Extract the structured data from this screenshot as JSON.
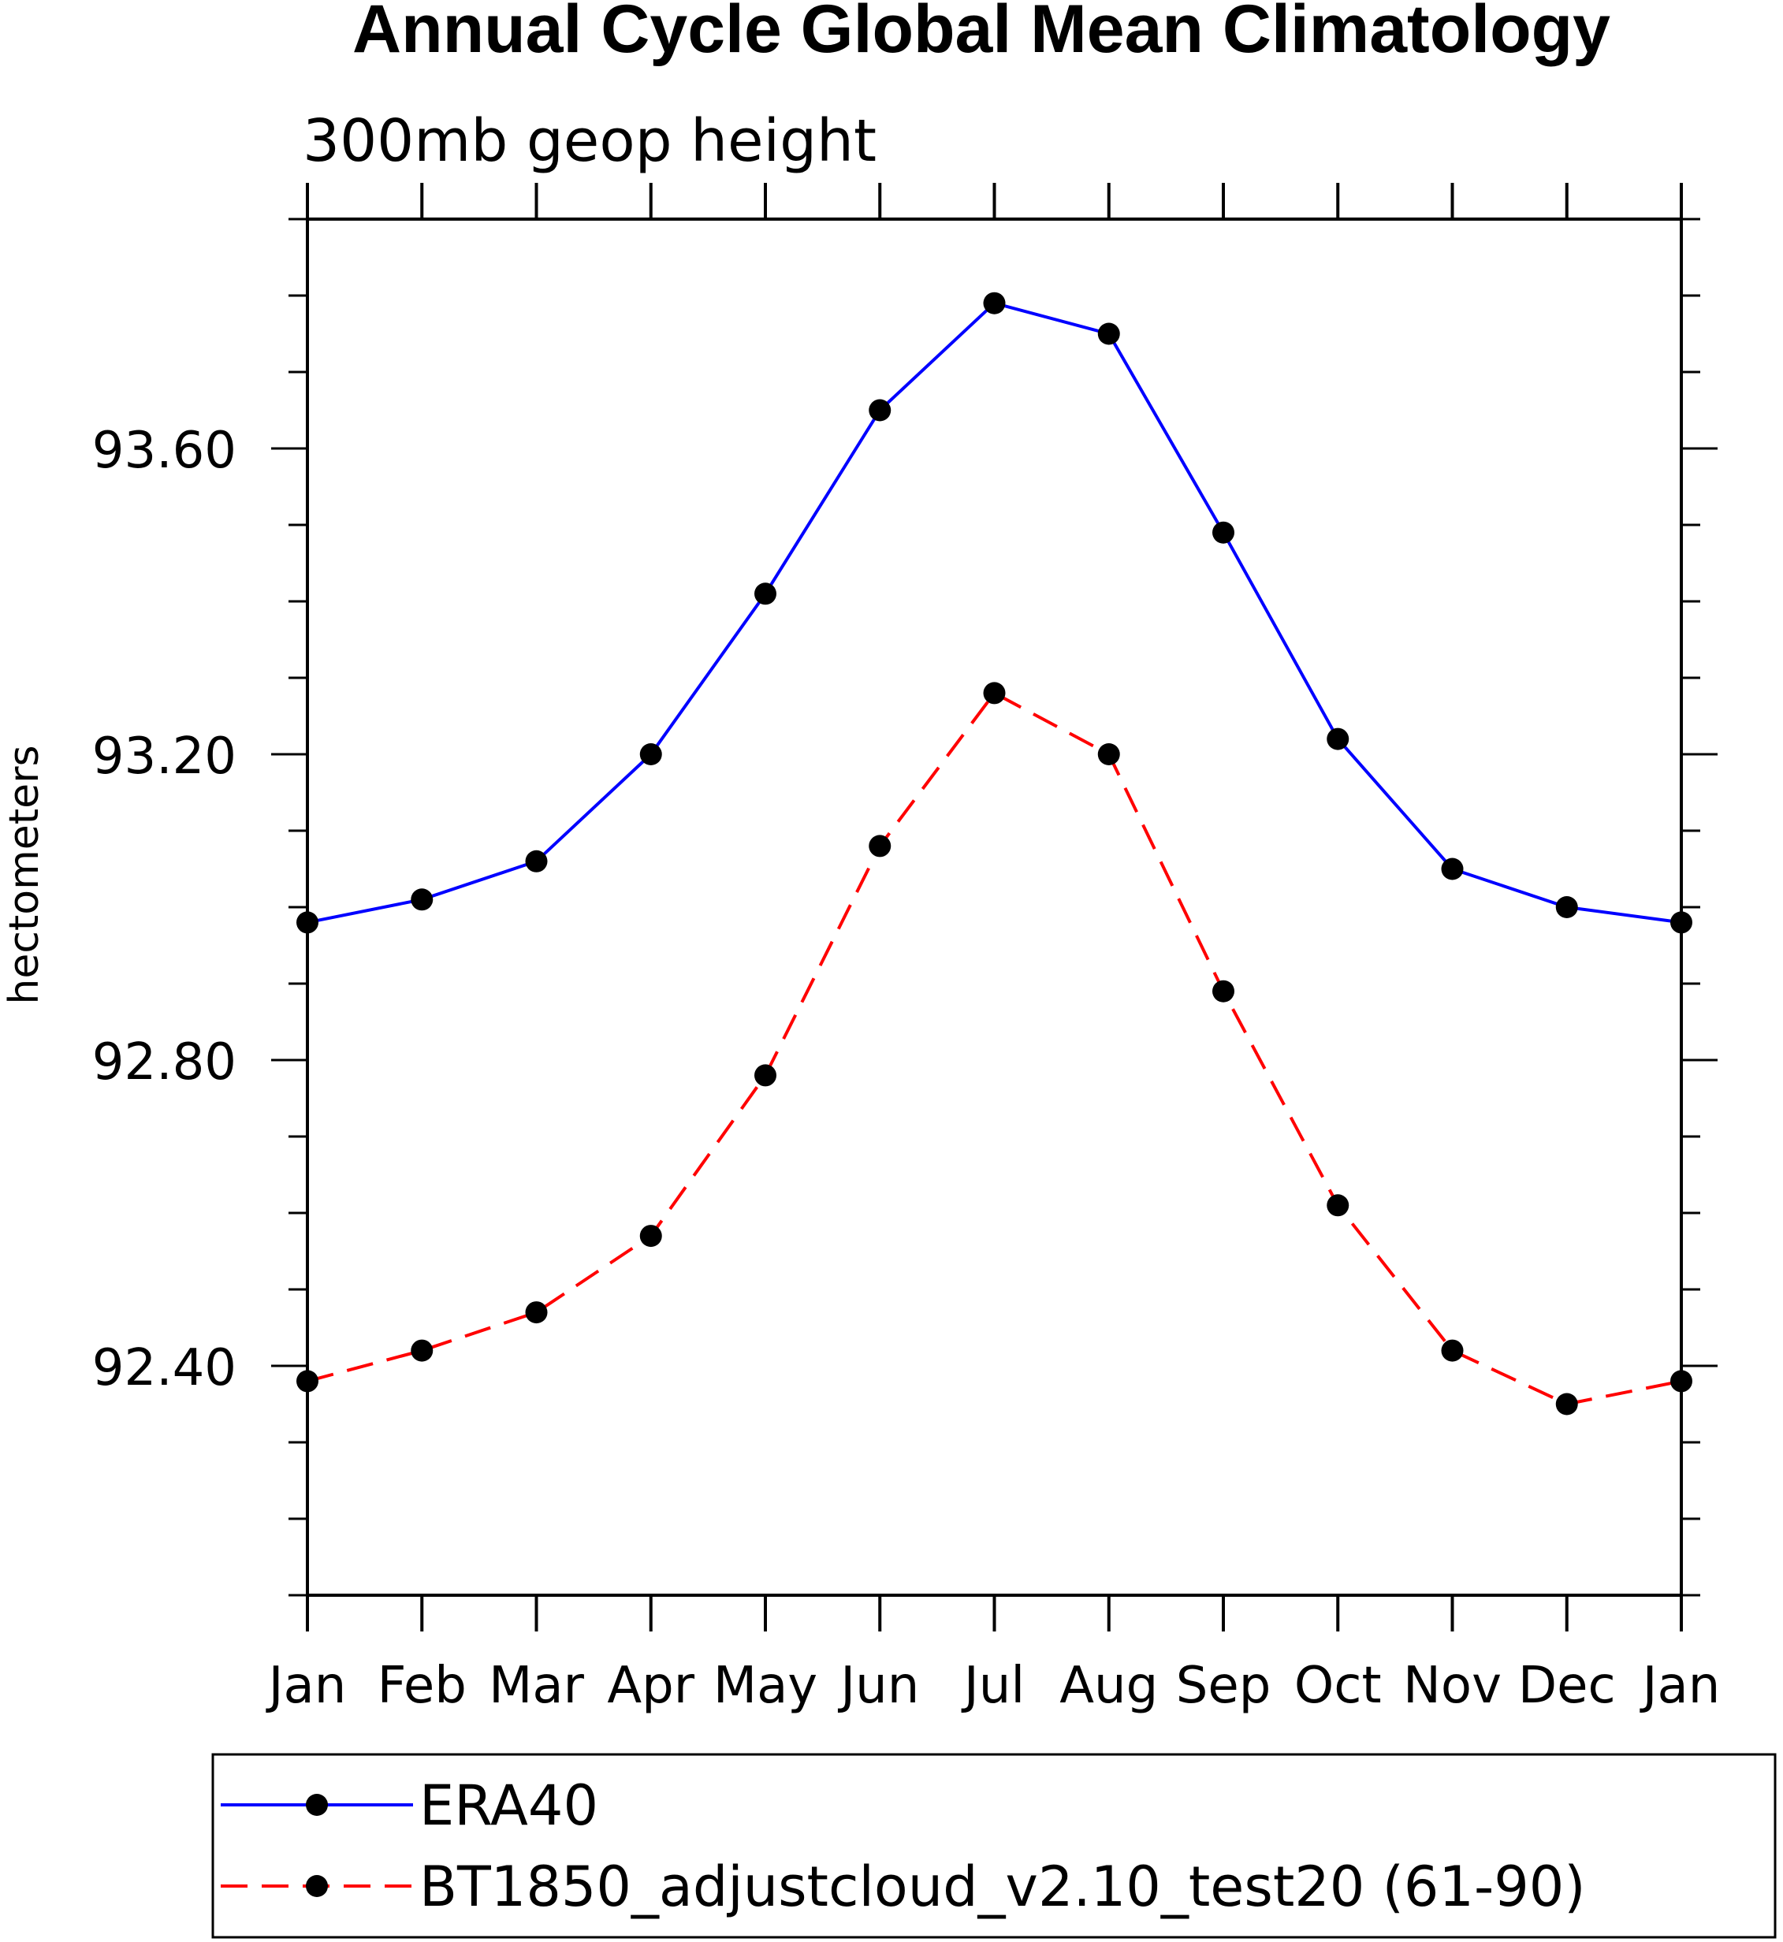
{
  "chart_data": {
    "type": "line",
    "title": "Annual Cycle Global Mean Climatology",
    "subtitle": "300mb geop height",
    "xlabel": "",
    "ylabel": "hectometers",
    "categories": [
      "Jan",
      "Feb",
      "Mar",
      "Apr",
      "May",
      "Jun",
      "Jul",
      "Aug",
      "Sep",
      "Oct",
      "Nov",
      "Dec",
      "Jan"
    ],
    "yticks": [
      "93.60",
      "93.20",
      "92.80",
      "92.40"
    ],
    "ylim": [
      92.1,
      93.9
    ],
    "grid": false,
    "legend_position": "bottom",
    "series": [
      {
        "name": "ERA40",
        "color": "#0000ff",
        "style": "solid",
        "marker": "circle",
        "values": [
          92.98,
          93.01,
          93.06,
          93.2,
          93.41,
          93.65,
          93.79,
          93.75,
          93.49,
          93.22,
          93.05,
          93.0,
          92.98
        ]
      },
      {
        "name": "BT1850_adjustcloud_v2.10_test20 (61-90)",
        "color": "#ff0000",
        "style": "dashed",
        "marker": "circle",
        "values": [
          92.38,
          92.42,
          92.47,
          92.57,
          92.78,
          93.08,
          93.28,
          93.2,
          92.89,
          92.61,
          92.42,
          92.35,
          92.38
        ]
      }
    ]
  }
}
